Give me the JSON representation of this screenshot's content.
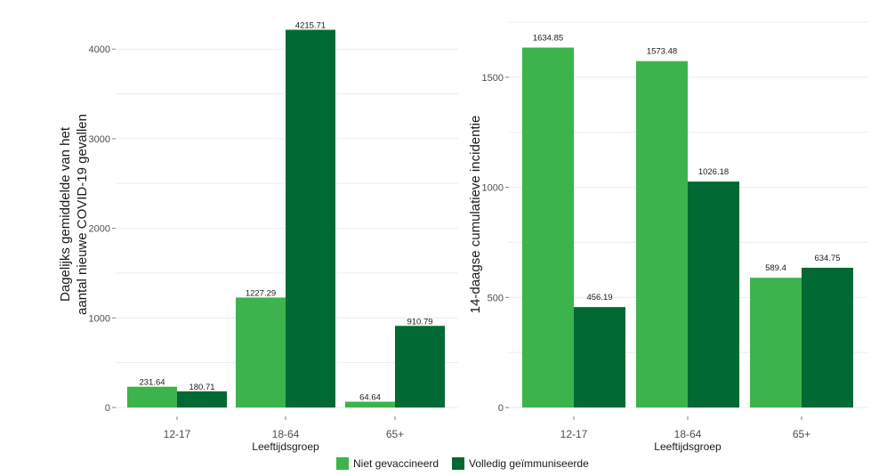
{
  "chart_data": [
    {
      "type": "bar",
      "categories": [
        "12-17",
        "18-64",
        "65+"
      ],
      "series": [
        {
          "name": "Niet gevaccineerd",
          "values": [
            231.64,
            1227.29,
            64.64
          ],
          "labels": [
            "231.64",
            "1227.29",
            "64.64"
          ]
        },
        {
          "name": "Volledig geïmmuniseerde",
          "values": [
            180.71,
            4215.71,
            910.79
          ],
          "labels": [
            "180.71",
            "4215.71",
            "910.79"
          ]
        }
      ],
      "xlabel": "Leeftijdsgroep",
      "ylabel": [
        "Dagelijks gemiddelde van het",
        "aantal nieuwe COVID-19 gevallen"
      ],
      "ylim": [
        0,
        4300
      ],
      "yticks": [
        0,
        1000,
        2000,
        3000,
        4000
      ],
      "grid": true,
      "legend": "bottom"
    },
    {
      "type": "bar",
      "categories": [
        "12-17",
        "18-64",
        "65+"
      ],
      "series": [
        {
          "name": "Niet gevaccineerd",
          "values": [
            1634.85,
            1573.48,
            589.4
          ],
          "labels": [
            "1634.85",
            "1573.48",
            "589.4"
          ]
        },
        {
          "name": "Volledig geïmmuniseerde",
          "values": [
            456.19,
            1026.18,
            634.75
          ],
          "labels": [
            "456.19",
            "1026.18",
            "634.75"
          ]
        }
      ],
      "xlabel": "Leeftijdsgroep",
      "ylabel": [
        "14-daagse cumulatieve incidentie"
      ],
      "ylim": [
        0,
        1750
      ],
      "yticks": [
        0,
        500,
        1000,
        1500
      ],
      "grid": true,
      "legend": "bottom"
    }
  ],
  "legend": {
    "items": [
      {
        "label": "Niet gevaccineerd",
        "color": "#3cb44b"
      },
      {
        "label": "Volledig geïmmuniseerde",
        "color": "#006934"
      }
    ]
  },
  "colors": {
    "series": [
      "#3cb44b",
      "#006934"
    ]
  }
}
